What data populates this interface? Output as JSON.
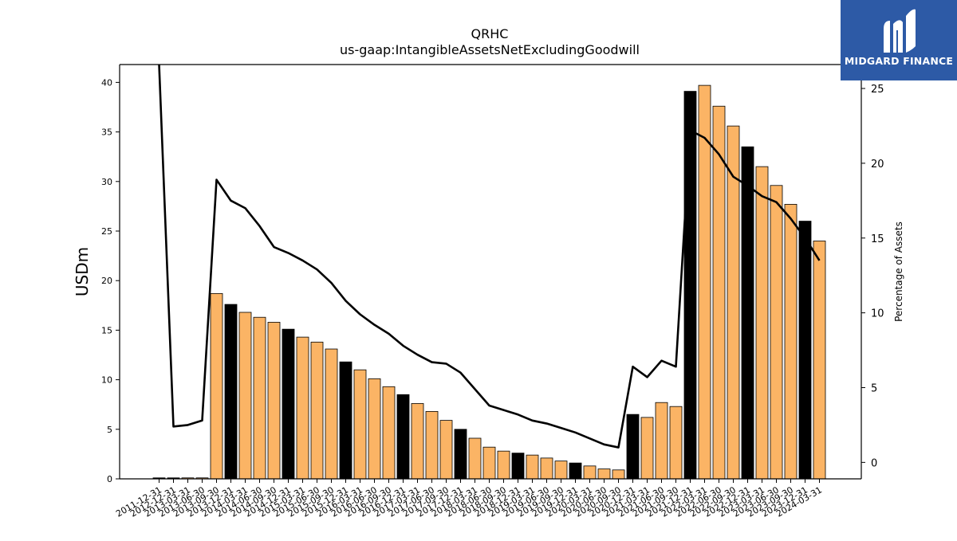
{
  "chart_data": {
    "type": "bar+line",
    "title": "QRHC",
    "subtitle": "us-gaap:IntangibleAssetsNetExcludingGoodwill",
    "ylabel": "USDm",
    "y2label": "Percentage of Assets",
    "ylim": [
      0,
      41.8
    ],
    "y2lim": [
      -1.1,
      26.6
    ],
    "yticks": [
      0,
      5,
      10,
      15,
      20,
      25,
      30,
      35,
      40
    ],
    "y2ticks": [
      0,
      5,
      10,
      15,
      20,
      25
    ],
    "grid": false,
    "categories": [
      "2011-12-31",
      "2012-12-31",
      "2013-03-31",
      "2013-06-30",
      "2013-09-30",
      "2013-12-31",
      "2014-03-31",
      "2014-06-30",
      "2014-09-30",
      "2014-12-31",
      "2015-03-31",
      "2015-06-30",
      "2015-09-30",
      "2015-12-31",
      "2016-03-31",
      "2016-06-30",
      "2016-09-30",
      "2016-12-31",
      "2017-03-31",
      "2017-06-30",
      "2017-09-30",
      "2017-12-31",
      "2018-03-31",
      "2018-06-30",
      "2018-09-30",
      "2018-12-31",
      "2019-03-31",
      "2019-06-30",
      "2019-09-30",
      "2019-12-31",
      "2020-03-31",
      "2020-06-30",
      "2020-09-30",
      "2020-12-31",
      "2021-03-31",
      "2021-06-30",
      "2021-09-30",
      "2021-12-31",
      "2022-03-31",
      "2022-06-30",
      "2022-09-30",
      "2022-12-31",
      "2023-03-31",
      "2023-06-30",
      "2023-09-30",
      "2023-12-31",
      "2024-03-31"
    ],
    "series": [
      {
        "type": "bar",
        "values": [
          0.1,
          0.1,
          0.1,
          0.1,
          18.7,
          17.6,
          16.8,
          16.3,
          15.8,
          15.1,
          14.3,
          13.8,
          13.1,
          11.8,
          11.0,
          10.1,
          9.3,
          8.5,
          7.6,
          6.8,
          5.9,
          5.0,
          4.1,
          3.2,
          2.8,
          2.6,
          2.4,
          2.1,
          1.8,
          1.6,
          1.3,
          1.0,
          0.9,
          6.5,
          6.2,
          7.7,
          7.3,
          39.1,
          39.7,
          37.6,
          35.6,
          33.5,
          31.5,
          29.6,
          27.7,
          26.0,
          24.0
        ],
        "colors_by_period": {
          "annual": "#000000",
          "quarterly": "#fbb465"
        },
        "annual_indices": [
          0,
          1,
          5,
          9,
          13,
          17,
          21,
          25,
          29,
          33,
          37,
          41,
          45
        ]
      },
      {
        "type": "line",
        "axis": "right",
        "values": [
          26.6,
          2.4,
          2.5,
          2.8,
          18.9,
          17.5,
          17.0,
          15.8,
          14.4,
          14.0,
          13.5,
          12.9,
          12.0,
          10.8,
          9.9,
          9.2,
          8.6,
          7.8,
          7.2,
          6.7,
          6.6,
          6.0,
          4.9,
          3.8,
          3.5,
          3.2,
          2.8,
          2.6,
          2.3,
          2.0,
          1.6,
          1.2,
          1.0,
          6.4,
          5.7,
          6.8,
          6.4,
          22.2,
          21.7,
          20.6,
          19.1,
          18.5,
          17.8,
          17.4,
          16.3,
          15.0,
          13.5
        ]
      }
    ]
  },
  "logo": {
    "text": "MIDGARD FINANCE",
    "bg_color": "#2d5aa6",
    "icon": "midgard-monogram-icon"
  }
}
